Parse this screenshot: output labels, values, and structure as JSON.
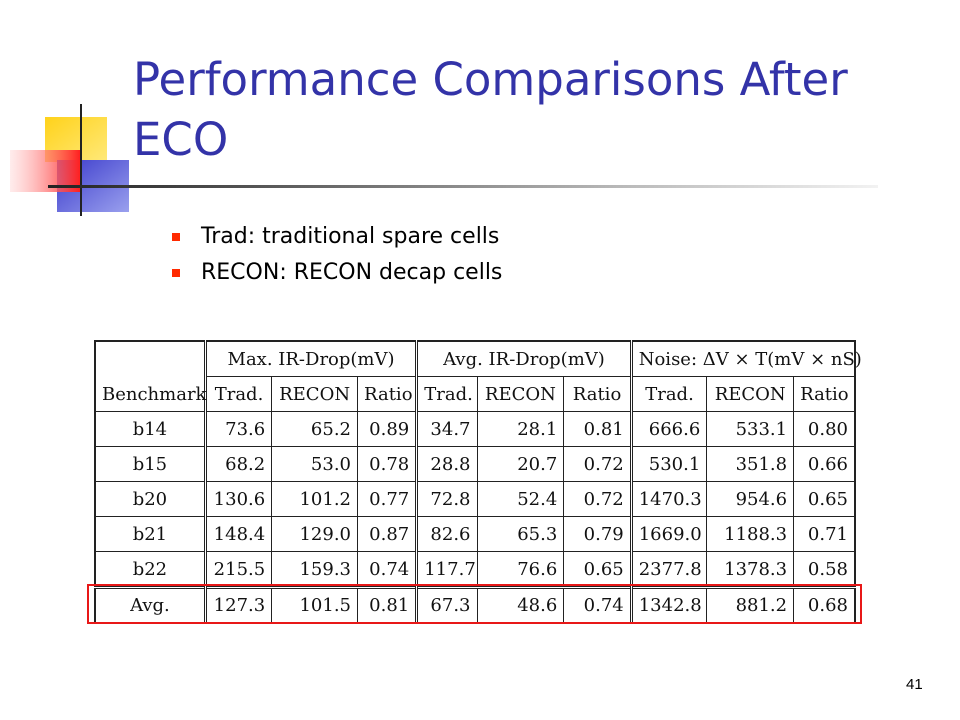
{
  "slide": {
    "title": "Performance Comparisons After ECO",
    "bullets": [
      "Trad: traditional spare cells",
      "RECON: RECON decap cells"
    ],
    "page_number": "41",
    "colors": {
      "title": "#3333a8",
      "bullet": "#ff2a00",
      "highlight": "#e81818",
      "deco_yellow": "#ffd21a",
      "deco_blue": "#3a3acb",
      "deco_red": "#ff3a3a"
    }
  },
  "table": {
    "benchmark_header": "Benchmark",
    "group_headers": [
      "Max. IR-Drop(mV)",
      "Avg. IR-Drop(mV)",
      "Noise: ΔV × T(mV × nS)"
    ],
    "sub_headers": [
      "Trad.",
      "RECON",
      "Ratio",
      "Trad.",
      "RECON",
      "Ratio",
      "Trad.",
      "RECON",
      "Ratio"
    ],
    "rows": [
      {
        "name": "b14",
        "values": [
          "73.6",
          "65.2",
          "0.89",
          "34.7",
          "28.1",
          "0.81",
          "666.6",
          "533.1",
          "0.80"
        ]
      },
      {
        "name": "b15",
        "values": [
          "68.2",
          "53.0",
          "0.78",
          "28.8",
          "20.7",
          "0.72",
          "530.1",
          "351.8",
          "0.66"
        ]
      },
      {
        "name": "b20",
        "values": [
          "130.6",
          "101.2",
          "0.77",
          "72.8",
          "52.4",
          "0.72",
          "1470.3",
          "954.6",
          "0.65"
        ]
      },
      {
        "name": "b21",
        "values": [
          "148.4",
          "129.0",
          "0.87",
          "82.6",
          "65.3",
          "0.79",
          "1669.0",
          "1188.3",
          "0.71"
        ]
      },
      {
        "name": "b22",
        "values": [
          "215.5",
          "159.3",
          "0.74",
          "117.7",
          "76.6",
          "0.65",
          "2377.8",
          "1378.3",
          "0.58"
        ]
      }
    ],
    "avg_row": {
      "name": "Avg.",
      "values": [
        "127.3",
        "101.5",
        "0.81",
        "67.3",
        "48.6",
        "0.74",
        "1342.8",
        "881.2",
        "0.68"
      ]
    }
  }
}
